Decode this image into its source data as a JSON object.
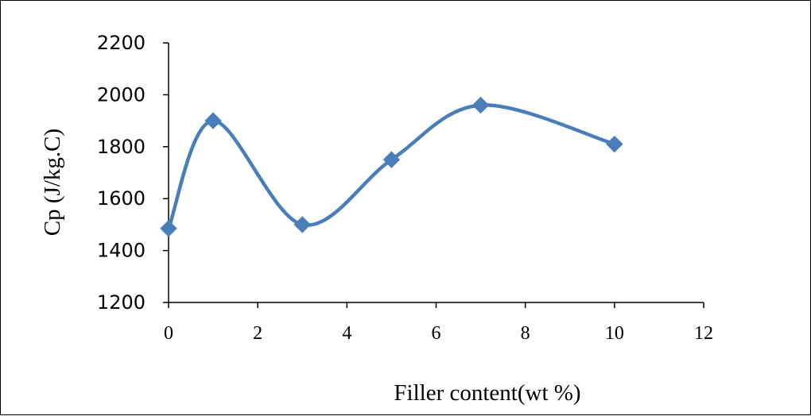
{
  "chart_data": {
    "type": "line",
    "smooth": true,
    "x": [
      0,
      1,
      3,
      5,
      7,
      10
    ],
    "y": [
      1485,
      1900,
      1500,
      1750,
      1960,
      1810
    ],
    "xlabel": "Filler content(wt %)",
    "ylabel": "Cp (J/kg.C)",
    "xlim": [
      0,
      12
    ],
    "ylim": [
      1200,
      2200
    ],
    "xticks": [
      "0",
      "2",
      "4",
      "6",
      "8",
      "10",
      "12"
    ],
    "yticks": [
      "1200",
      "1400",
      "1600",
      "1800",
      "2000",
      "2200"
    ],
    "series_color": "#4a7ebb",
    "marker": "diamond",
    "grid": false,
    "legend": "none"
  }
}
